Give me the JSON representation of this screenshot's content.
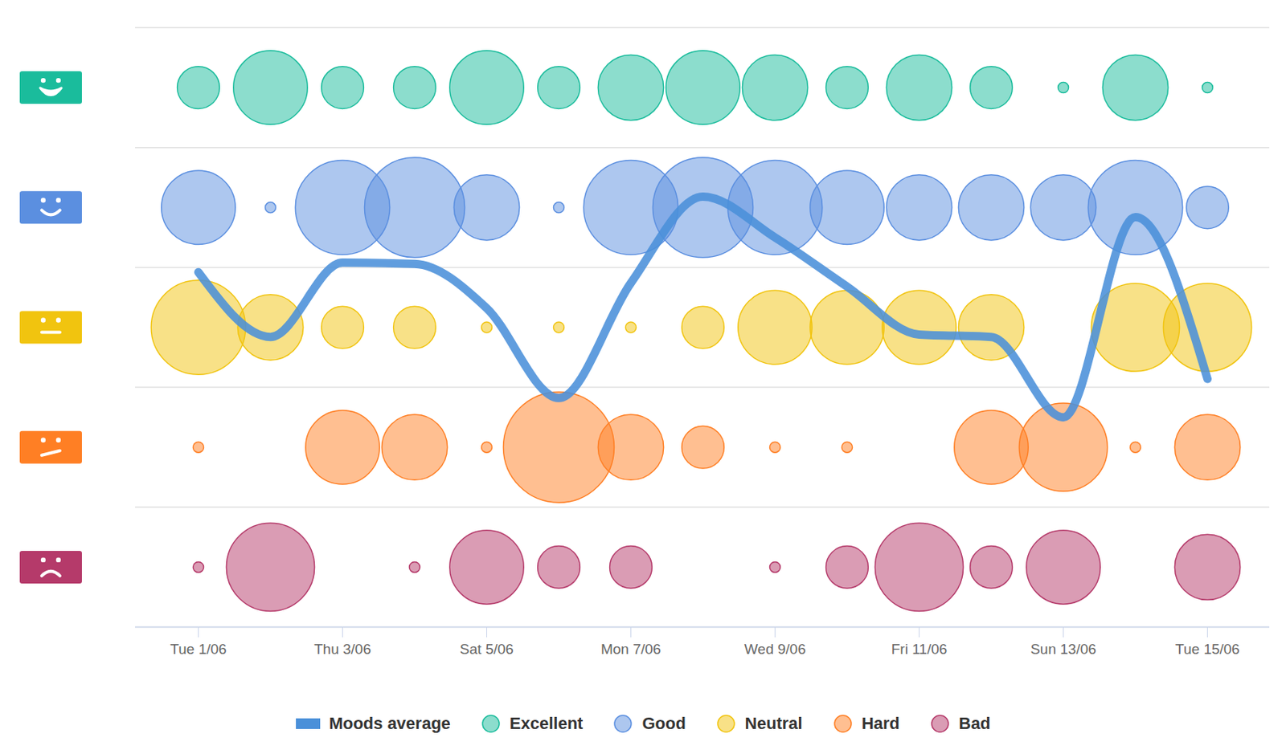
{
  "chart_data": {
    "type": "bubble",
    "categories": [
      "Tue 1/06",
      null,
      "Thu 3/06",
      null,
      "Sat 5/06",
      null,
      "Mon 7/06",
      null,
      "Wed 9/06",
      null,
      "Fri 11/06",
      null,
      "Sun 13/06",
      null,
      "Tue 15/06"
    ],
    "ylim": [
      0.5,
      5.5
    ],
    "yticks": [
      0.5,
      1.5,
      2.5,
      3.5,
      4.5,
      5.5
    ],
    "grid": true,
    "tick_labels": "x",
    "legend": "bottom",
    "series": [
      {
        "name": "Moods average",
        "type": "line",
        "color": "#4a90d9",
        "values": [
          3.46,
          2.92,
          3.54,
          3.53,
          3.16,
          2.41,
          3.37,
          4.09,
          3.75,
          3.34,
          2.94,
          2.92,
          2.25,
          3.92,
          2.57
        ]
      },
      {
        "name": "Excellent",
        "type": "bubble",
        "marker": "circle",
        "color": "#1abc9c",
        "values": [
          5,
          5,
          5,
          5,
          5,
          5,
          5,
          5,
          5,
          5,
          5,
          5,
          5,
          5,
          5
        ],
        "sizes": [
          1,
          4,
          1,
          1,
          4,
          1,
          3,
          4,
          3,
          1,
          3,
          1,
          0,
          3,
          0
        ]
      },
      {
        "name": "Good",
        "type": "bubble",
        "marker": "circle",
        "color": "#5b8fe0",
        "values": [
          4,
          4,
          4,
          4,
          4,
          4,
          4,
          4,
          4,
          4,
          4,
          4,
          4,
          4,
          4
        ],
        "sizes": [
          4,
          0,
          7,
          8,
          3,
          0,
          7,
          8,
          7,
          4,
          3,
          3,
          3,
          7,
          1
        ]
      },
      {
        "name": "Neutral",
        "type": "bubble",
        "marker": "circle",
        "color": "#f1c40f",
        "values": [
          3,
          3,
          3,
          3,
          3,
          3,
          3,
          3,
          3,
          3,
          3,
          3,
          null,
          3,
          3
        ],
        "sizes": [
          7,
          3,
          1,
          1,
          0,
          0,
          0,
          1,
          4,
          4,
          4,
          3,
          null,
          6,
          6
        ]
      },
      {
        "name": "Hard",
        "type": "bubble",
        "marker": "circle",
        "color": "#ff7f24",
        "values": [
          2,
          null,
          2,
          2,
          2,
          2,
          2,
          2,
          2,
          2,
          null,
          2,
          2,
          2,
          2
        ],
        "sizes": [
          0,
          null,
          4,
          3,
          0,
          10,
          3,
          1,
          0,
          0,
          null,
          4,
          6,
          0,
          3
        ]
      },
      {
        "name": "Bad",
        "type": "bubble",
        "marker": "circle",
        "color": "#b53a6a",
        "values": [
          1,
          1,
          null,
          1,
          1,
          1,
          1,
          null,
          1,
          1,
          1,
          1,
          1,
          null,
          1
        ],
        "sizes": [
          0,
          6,
          null,
          0,
          4,
          1,
          1,
          null,
          0,
          1,
          6,
          1,
          4,
          null,
          3
        ]
      }
    ]
  }
}
